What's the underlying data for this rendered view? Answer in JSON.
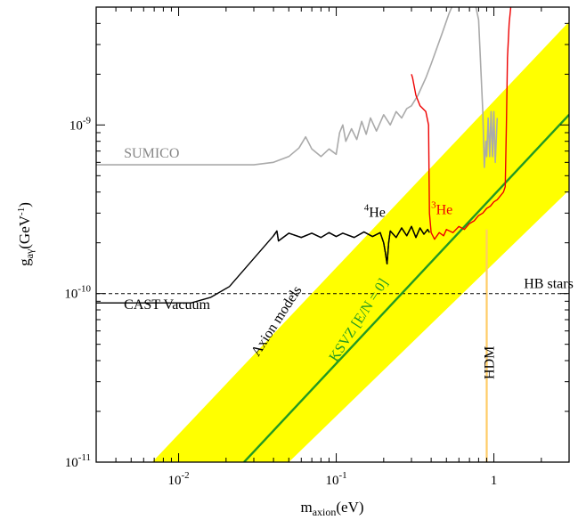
{
  "chart_data": {
    "type": "line",
    "x_scale": "log",
    "y_scale": "log",
    "xlim": [
      0.003,
      3.0
    ],
    "ylim": [
      1e-11,
      5e-09
    ],
    "x_ticks": [
      {
        "value": 0.01,
        "base": "10",
        "exp": "-2"
      },
      {
        "value": 0.1,
        "base": "10",
        "exp": "-1"
      },
      {
        "value": 1,
        "base": "1",
        "exp": ""
      }
    ],
    "y_ticks": [
      {
        "value": 1e-11,
        "base": "10",
        "exp": "-11"
      },
      {
        "value": 1e-10,
        "base": "10",
        "exp": "-10"
      },
      {
        "value": 1e-09,
        "base": "10",
        "exp": "-9"
      }
    ],
    "xlabel": {
      "main": "m",
      "sub": "axion",
      "unit": "(eV)"
    },
    "ylabel": {
      "main": "g",
      "sub": "aγ",
      "unit_pre": "(GeV",
      "unit_sup": "-1",
      "unit_post": ")"
    },
    "grid": false,
    "colors": {
      "band": "#ffff00",
      "ksvz": "#229922",
      "sumico": "#aaaaaa",
      "cast_vacuum": "#000000",
      "he4": "#000000",
      "he3": "#ee0000",
      "hb": "#000000",
      "hdm": "#ffcc66"
    },
    "band": {
      "name": "Axion models",
      "lower_edge": [
        [
          0.05,
          1e-11
        ],
        [
          3.0,
          4.1e-10
        ]
      ],
      "upper_edge": [
        [
          0.0068,
          1e-11
        ],
        [
          3.0,
          4.1e-09
        ]
      ]
    },
    "series": [
      {
        "name": "SUMICO",
        "key": "sumico",
        "points": [
          [
            0.003,
            5.8e-10
          ],
          [
            0.02,
            5.8e-10
          ],
          [
            0.03,
            5.8e-10
          ],
          [
            0.04,
            6e-10
          ],
          [
            0.05,
            6.5e-10
          ],
          [
            0.058,
            7.3e-10
          ],
          [
            0.064,
            8.5e-10
          ],
          [
            0.07,
            7.2e-10
          ],
          [
            0.08,
            6.5e-10
          ],
          [
            0.09,
            7.2e-10
          ],
          [
            0.1,
            6.7e-10
          ],
          [
            0.105,
            9e-10
          ],
          [
            0.11,
            1e-09
          ],
          [
            0.115,
            8e-10
          ],
          [
            0.125,
            9.5e-10
          ],
          [
            0.135,
            8.2e-10
          ],
          [
            0.145,
            1.05e-09
          ],
          [
            0.155,
            8.8e-10
          ],
          [
            0.165,
            1.1e-09
          ],
          [
            0.18,
            9.2e-10
          ],
          [
            0.2,
            1.15e-09
          ],
          [
            0.22,
            1e-09
          ],
          [
            0.24,
            1.2e-09
          ],
          [
            0.26,
            1.1e-09
          ],
          [
            0.28,
            1.25e-09
          ],
          [
            0.3,
            1.3e-09
          ],
          [
            0.33,
            1.5e-09
          ],
          [
            0.37,
            1.9e-09
          ],
          [
            0.4,
            2.3e-09
          ],
          [
            0.47,
            3.5e-09
          ],
          [
            0.52,
            4.6e-09
          ],
          [
            0.57,
            5.6e-09
          ],
          [
            0.75,
            5.6e-09
          ],
          [
            0.8,
            4.2e-09
          ],
          [
            0.85,
            1.2e-09
          ],
          [
            0.87,
            5.6e-10
          ],
          [
            0.89,
            8e-10
          ],
          [
            0.9,
            6.5e-10
          ],
          [
            0.92,
            1.1e-09
          ],
          [
            0.94,
            6.5e-10
          ],
          [
            0.96,
            1.2e-09
          ],
          [
            0.98,
            6.5e-10
          ],
          [
            1.0,
            1.2e-09
          ],
          [
            1.02,
            6e-10
          ],
          [
            1.05,
            1.1e-09
          ]
        ]
      },
      {
        "name": "CAST Vacuum",
        "key": "cast_vacuum",
        "points": [
          [
            0.003,
            8.8e-11
          ],
          [
            0.012,
            8.8e-11
          ],
          [
            0.016,
            9.5e-11
          ],
          [
            0.021,
            1.1e-10
          ],
          [
            0.04,
            2.2e-10
          ],
          [
            0.042,
            2.35e-10
          ],
          [
            0.043,
            2.05e-10
          ],
          [
            0.05,
            2.28e-10
          ],
          [
            0.06,
            2.15e-10
          ],
          [
            0.07,
            2.28e-10
          ],
          [
            0.08,
            2.15e-10
          ],
          [
            0.09,
            2.3e-10
          ],
          [
            0.1,
            2.18e-10
          ],
          [
            0.11,
            2.28e-10
          ],
          [
            0.13,
            2.15e-10
          ],
          [
            0.15,
            2.32e-10
          ],
          [
            0.17,
            2.18e-10
          ],
          [
            0.19,
            2.3e-10
          ],
          [
            0.2,
            2e-10
          ],
          [
            0.205,
            1.75e-10
          ],
          [
            0.21,
            1.5e-10
          ],
          [
            0.215,
            2e-10
          ],
          [
            0.22,
            2.35e-10
          ],
          [
            0.24,
            2.15e-10
          ],
          [
            0.26,
            2.45e-10
          ],
          [
            0.28,
            2.2e-10
          ],
          [
            0.3,
            2.5e-10
          ],
          [
            0.32,
            2.15e-10
          ],
          [
            0.34,
            2.45e-10
          ],
          [
            0.36,
            2.25e-10
          ],
          [
            0.38,
            2.4e-10
          ],
          [
            0.39,
            2.3e-10
          ]
        ]
      },
      {
        "name": "He",
        "name_sup": "4",
        "key": "he4",
        "points": [
          [
            0.04,
            2.2e-10
          ],
          [
            0.042,
            2.35e-10
          ],
          [
            0.043,
            2.05e-10
          ],
          [
            0.05,
            2.28e-10
          ],
          [
            0.06,
            2.15e-10
          ],
          [
            0.07,
            2.28e-10
          ],
          [
            0.08,
            2.15e-10
          ],
          [
            0.09,
            2.3e-10
          ],
          [
            0.1,
            2.18e-10
          ],
          [
            0.11,
            2.28e-10
          ],
          [
            0.13,
            2.15e-10
          ],
          [
            0.15,
            2.32e-10
          ],
          [
            0.17,
            2.18e-10
          ],
          [
            0.19,
            2.3e-10
          ],
          [
            0.2,
            2e-10
          ],
          [
            0.205,
            1.75e-10
          ],
          [
            0.21,
            1.5e-10
          ],
          [
            0.215,
            2e-10
          ],
          [
            0.22,
            2.35e-10
          ],
          [
            0.24,
            2.15e-10
          ],
          [
            0.26,
            2.45e-10
          ],
          [
            0.28,
            2.2e-10
          ],
          [
            0.3,
            2.5e-10
          ],
          [
            0.32,
            2.15e-10
          ],
          [
            0.34,
            2.45e-10
          ],
          [
            0.36,
            2.25e-10
          ],
          [
            0.38,
            2.4e-10
          ],
          [
            0.39,
            2.3e-10
          ]
        ]
      },
      {
        "name": "He",
        "name_sup": "3",
        "key": "he3",
        "points": [
          [
            0.3,
            2e-09
          ],
          [
            0.305,
            1.9e-09
          ],
          [
            0.32,
            1.5e-09
          ],
          [
            0.34,
            1.3e-09
          ],
          [
            0.37,
            1.2e-09
          ],
          [
            0.385,
            1e-09
          ],
          [
            0.39,
            3e-10
          ],
          [
            0.4,
            2.3e-10
          ],
          [
            0.42,
            2.1e-10
          ],
          [
            0.45,
            2.3e-10
          ],
          [
            0.48,
            2.2e-10
          ],
          [
            0.5,
            2.4e-10
          ],
          [
            0.55,
            2.3e-10
          ],
          [
            0.6,
            2.5e-10
          ],
          [
            0.65,
            2.4e-10
          ],
          [
            0.7,
            2.6e-10
          ],
          [
            0.75,
            2.7e-10
          ],
          [
            0.8,
            2.9e-10
          ],
          [
            0.85,
            3e-10
          ],
          [
            0.9,
            3.2e-10
          ],
          [
            0.95,
            3.3e-10
          ],
          [
            1.0,
            3.5e-10
          ],
          [
            1.05,
            3.6e-10
          ],
          [
            1.1,
            3.8e-10
          ],
          [
            1.15,
            4e-10
          ],
          [
            1.18,
            4.3e-10
          ],
          [
            1.2,
            1e-09
          ],
          [
            1.22,
            2.5e-09
          ],
          [
            1.25,
            4e-09
          ],
          [
            1.28,
            5e-09
          ]
        ]
      },
      {
        "name": "KSVZ [E/N = 0]",
        "key": "ksvz",
        "points": [
          [
            0.026,
            1e-11
          ],
          [
            3.0,
            1.15e-09
          ]
        ]
      },
      {
        "name": "HB stars",
        "key": "hb",
        "dashed": true,
        "points": [
          [
            0.003,
            1e-10
          ],
          [
            3.0,
            1e-10
          ]
        ]
      },
      {
        "name": "HDM",
        "key": "hdm",
        "points": [
          [
            0.9,
            1e-11
          ],
          [
            0.9,
            2.4e-10
          ]
        ]
      }
    ],
    "annotations": [
      {
        "key": "sumico",
        "text": "SUMICO",
        "sup": "",
        "x": 0.0045,
        "y": 6.4e-10,
        "rotate": 0
      },
      {
        "key": "he4",
        "text": "He",
        "sup": "4",
        "x": 0.15,
        "y": 2.85e-10,
        "rotate": 0
      },
      {
        "key": "he3",
        "text": "He",
        "sup": "3",
        "x": 0.4,
        "y": 2.95e-10,
        "rotate": 0
      },
      {
        "key": "hb",
        "text": "HB stars",
        "sup": "",
        "x": 1.55,
        "y": 1.08e-10,
        "rotate": 0
      },
      {
        "key": "cast_vacuum",
        "text": "CAST Vacuum",
        "sup": "",
        "x": 0.0045,
        "y": 8.1e-11,
        "rotate": 0
      },
      {
        "key": "band",
        "text": "Axion models",
        "sup": "",
        "x": 0.032,
        "y": 4.2e-11,
        "rotate": -57
      },
      {
        "key": "ksvz",
        "text": "KSVZ [E/N = 0]",
        "sup": "",
        "x": 0.1,
        "y": 3.9e-11,
        "rotate": -57
      },
      {
        "key": "hdm",
        "text": "HDM",
        "sup": "",
        "x": 1.0,
        "y": 3.1e-11,
        "rotate": -90
      }
    ]
  }
}
